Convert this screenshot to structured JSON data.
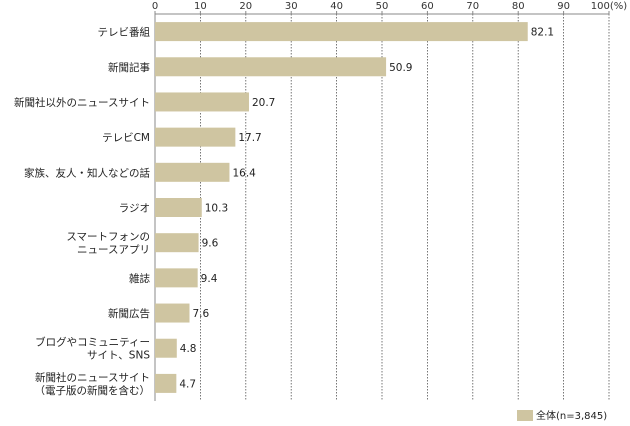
{
  "chart_data": {
    "type": "bar",
    "orientation": "horizontal",
    "categories": [
      "テレビ番組",
      "新聞記事",
      "新聞社以外のニュースサイト",
      "テレビCM",
      "家族、友人・知人などの話",
      "ラジオ",
      "スマートフォンの\nニュースアプリ",
      "雑誌",
      "新聞広告",
      "ブログやコミュニティー\nサイト、SNS",
      "新聞社のニュースサイト\n（電子版の新聞を含む）"
    ],
    "series": [
      {
        "name": "全体(n=3,845)",
        "values": [
          82.1,
          50.9,
          20.7,
          17.7,
          16.4,
          10.3,
          9.6,
          9.4,
          7.6,
          4.8,
          4.7
        ]
      }
    ],
    "value_labels": [
      "82.1",
      "50.9",
      "20.7",
      "17.7",
      "16.4",
      "10.3",
      "9.6",
      "9.4",
      "7.6",
      "4.8",
      "4.7"
    ],
    "xlim": [
      0,
      100
    ],
    "xticks": [
      0,
      10,
      20,
      30,
      40,
      50,
      60,
      70,
      80,
      90,
      100
    ],
    "xtick_labels": [
      "0",
      "10",
      "20",
      "30",
      "40",
      "50",
      "60",
      "70",
      "80",
      "90",
      "100(%)"
    ],
    "grid": true,
    "legend_position": "bottom-right",
    "colors": {
      "bar": "#cfc5a1",
      "grid": "#555555",
      "axis": "#888888"
    }
  }
}
